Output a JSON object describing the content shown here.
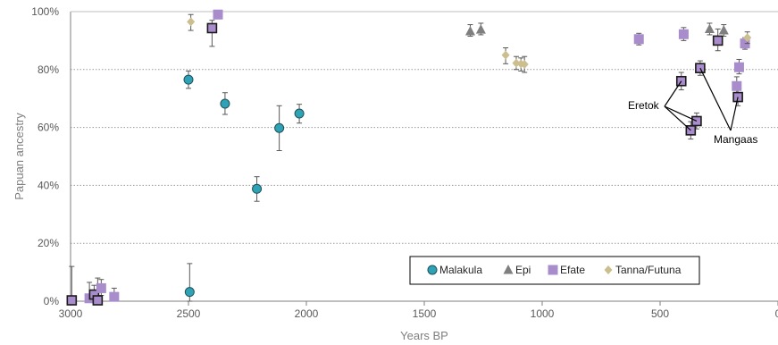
{
  "chart_data": {
    "type": "scatter",
    "title": "",
    "xlabel": "Years BP",
    "ylabel": "Papuan ancestry",
    "xlim": [
      3000,
      0
    ],
    "ylim": [
      0,
      100
    ],
    "x_ticks": [
      3000,
      2500,
      2000,
      1500,
      1000,
      500,
      0
    ],
    "x_tick_labels": [
      "3000",
      "2500",
      "2000",
      "1500",
      "1000",
      "500",
      "0"
    ],
    "y_ticks": [
      0,
      20,
      40,
      60,
      80,
      100
    ],
    "y_tick_labels": [
      "0%",
      "20%",
      "40%",
      "60%",
      "80%",
      "100%"
    ],
    "grid": "horizontal dotted",
    "legend_position": "bottom-right",
    "series": [
      {
        "name": "Malakula",
        "marker": "circle",
        "color": "#2fa3b6",
        "points": [
          {
            "x": 2500,
            "y": 76.5,
            "lo": 73.5,
            "hi": 79.5
          },
          {
            "x": 2345,
            "y": 68.2,
            "lo": 64.5,
            "hi": 72.0
          },
          {
            "x": 2210,
            "y": 38.8,
            "lo": 34.5,
            "hi": 43.0
          },
          {
            "x": 2115,
            "y": 59.8,
            "lo": 52.0,
            "hi": 67.5
          },
          {
            "x": 2030,
            "y": 64.8,
            "lo": 61.5,
            "hi": 68.0
          },
          {
            "x": 2495,
            "y": 3.2,
            "lo": 0,
            "hi": 13.0
          }
        ]
      },
      {
        "name": "Epi",
        "marker": "triangle",
        "color": "#7f7f7f",
        "points": [
          {
            "x": 1305,
            "y": 93.2,
            "lo": 91.5,
            "hi": 95.5
          },
          {
            "x": 1260,
            "y": 93.8,
            "lo": 92.0,
            "hi": 96.0
          },
          {
            "x": 290,
            "y": 94.0,
            "lo": 92.0,
            "hi": 96.0
          },
          {
            "x": 230,
            "y": 93.5,
            "lo": 91.5,
            "hi": 95.5
          }
        ]
      },
      {
        "name": "Efate",
        "marker": "square",
        "color": "#a88ccc",
        "points": [
          {
            "x": 2995,
            "y": 0.3,
            "lo": 0,
            "hi": 12.0
          },
          {
            "x": 2920,
            "y": 1.0,
            "lo": 0,
            "hi": 6.5
          },
          {
            "x": 2900,
            "y": 2.3,
            "lo": 0,
            "hi": 5.5
          },
          {
            "x": 2885,
            "y": 0.3,
            "lo": 0,
            "hi": 8.0
          },
          {
            "x": 2870,
            "y": 4.5,
            "lo": 2.0,
            "hi": 7.5
          },
          {
            "x": 2815,
            "y": 1.5,
            "lo": 0,
            "hi": 4.5
          },
          {
            "x": 2375,
            "y": 99.0,
            "lo": 97.5,
            "hi": 100
          },
          {
            "x": 2400,
            "y": 94.3,
            "lo": 88.0,
            "hi": 97.0
          },
          {
            "x": 590,
            "y": 90.5,
            "lo": 88.5,
            "hi": 92.5
          },
          {
            "x": 400,
            "y": 92.2,
            "lo": 90.0,
            "hi": 94.5
          },
          {
            "x": 255,
            "y": 90.0,
            "lo": 86.5,
            "hi": 94.0
          },
          {
            "x": 165,
            "y": 80.8,
            "lo": 78.5,
            "hi": 83.5
          },
          {
            "x": 175,
            "y": 74.3,
            "lo": 71.5,
            "hi": 77.5
          },
          {
            "x": 140,
            "y": 89.0,
            "lo": 87.0,
            "hi": 91.0
          },
          {
            "x": 410,
            "y": 76.0,
            "lo": 73.0,
            "hi": 79.0
          },
          {
            "x": 330,
            "y": 80.5,
            "lo": 78.0,
            "hi": 83.0
          },
          {
            "x": 345,
            "y": 62.2,
            "lo": 59.5,
            "hi": 65.0
          },
          {
            "x": 370,
            "y": 59.0,
            "lo": 56.0,
            "hi": 62.0
          },
          {
            "x": 170,
            "y": 70.5,
            "lo": 67.5,
            "hi": 73.5
          }
        ]
      },
      {
        "name": "Tanna/Futuna",
        "marker": "diamond",
        "color": "#cbbf8f",
        "points": [
          {
            "x": 2490,
            "y": 96.5,
            "lo": 93.5,
            "hi": 99.0
          },
          {
            "x": 1155,
            "y": 85.0,
            "lo": 82.0,
            "hi": 87.5
          },
          {
            "x": 1110,
            "y": 82.2,
            "lo": 80.0,
            "hi": 84.5
          },
          {
            "x": 1090,
            "y": 82.0,
            "lo": 79.5,
            "hi": 84.0
          },
          {
            "x": 1075,
            "y": 81.8,
            "lo": 79.0,
            "hi": 84.5
          },
          {
            "x": 130,
            "y": 91.0,
            "lo": 89.0,
            "hi": 93.0
          }
        ]
      }
    ],
    "highlighted_points": [
      {
        "x": 2995,
        "y": 0.3
      },
      {
        "x": 2900,
        "y": 2.3
      },
      {
        "x": 2885,
        "y": 0.3
      },
      {
        "x": 2400,
        "y": 94.3
      },
      {
        "x": 410,
        "y": 76.0
      },
      {
        "x": 330,
        "y": 80.5
      },
      {
        "x": 345,
        "y": 62.2
      },
      {
        "x": 370,
        "y": 59.0
      },
      {
        "x": 255,
        "y": 90.0
      },
      {
        "x": 170,
        "y": 70.5
      }
    ],
    "annotations": [
      {
        "text": "Eretok",
        "targets": [
          {
            "x": 410,
            "y": 76.0
          },
          {
            "x": 345,
            "y": 62.2
          },
          {
            "x": 370,
            "y": 59.0
          }
        ]
      },
      {
        "text": "Mangaas",
        "targets": [
          {
            "x": 330,
            "y": 80.5
          },
          {
            "x": 170,
            "y": 70.5
          }
        ]
      }
    ]
  }
}
